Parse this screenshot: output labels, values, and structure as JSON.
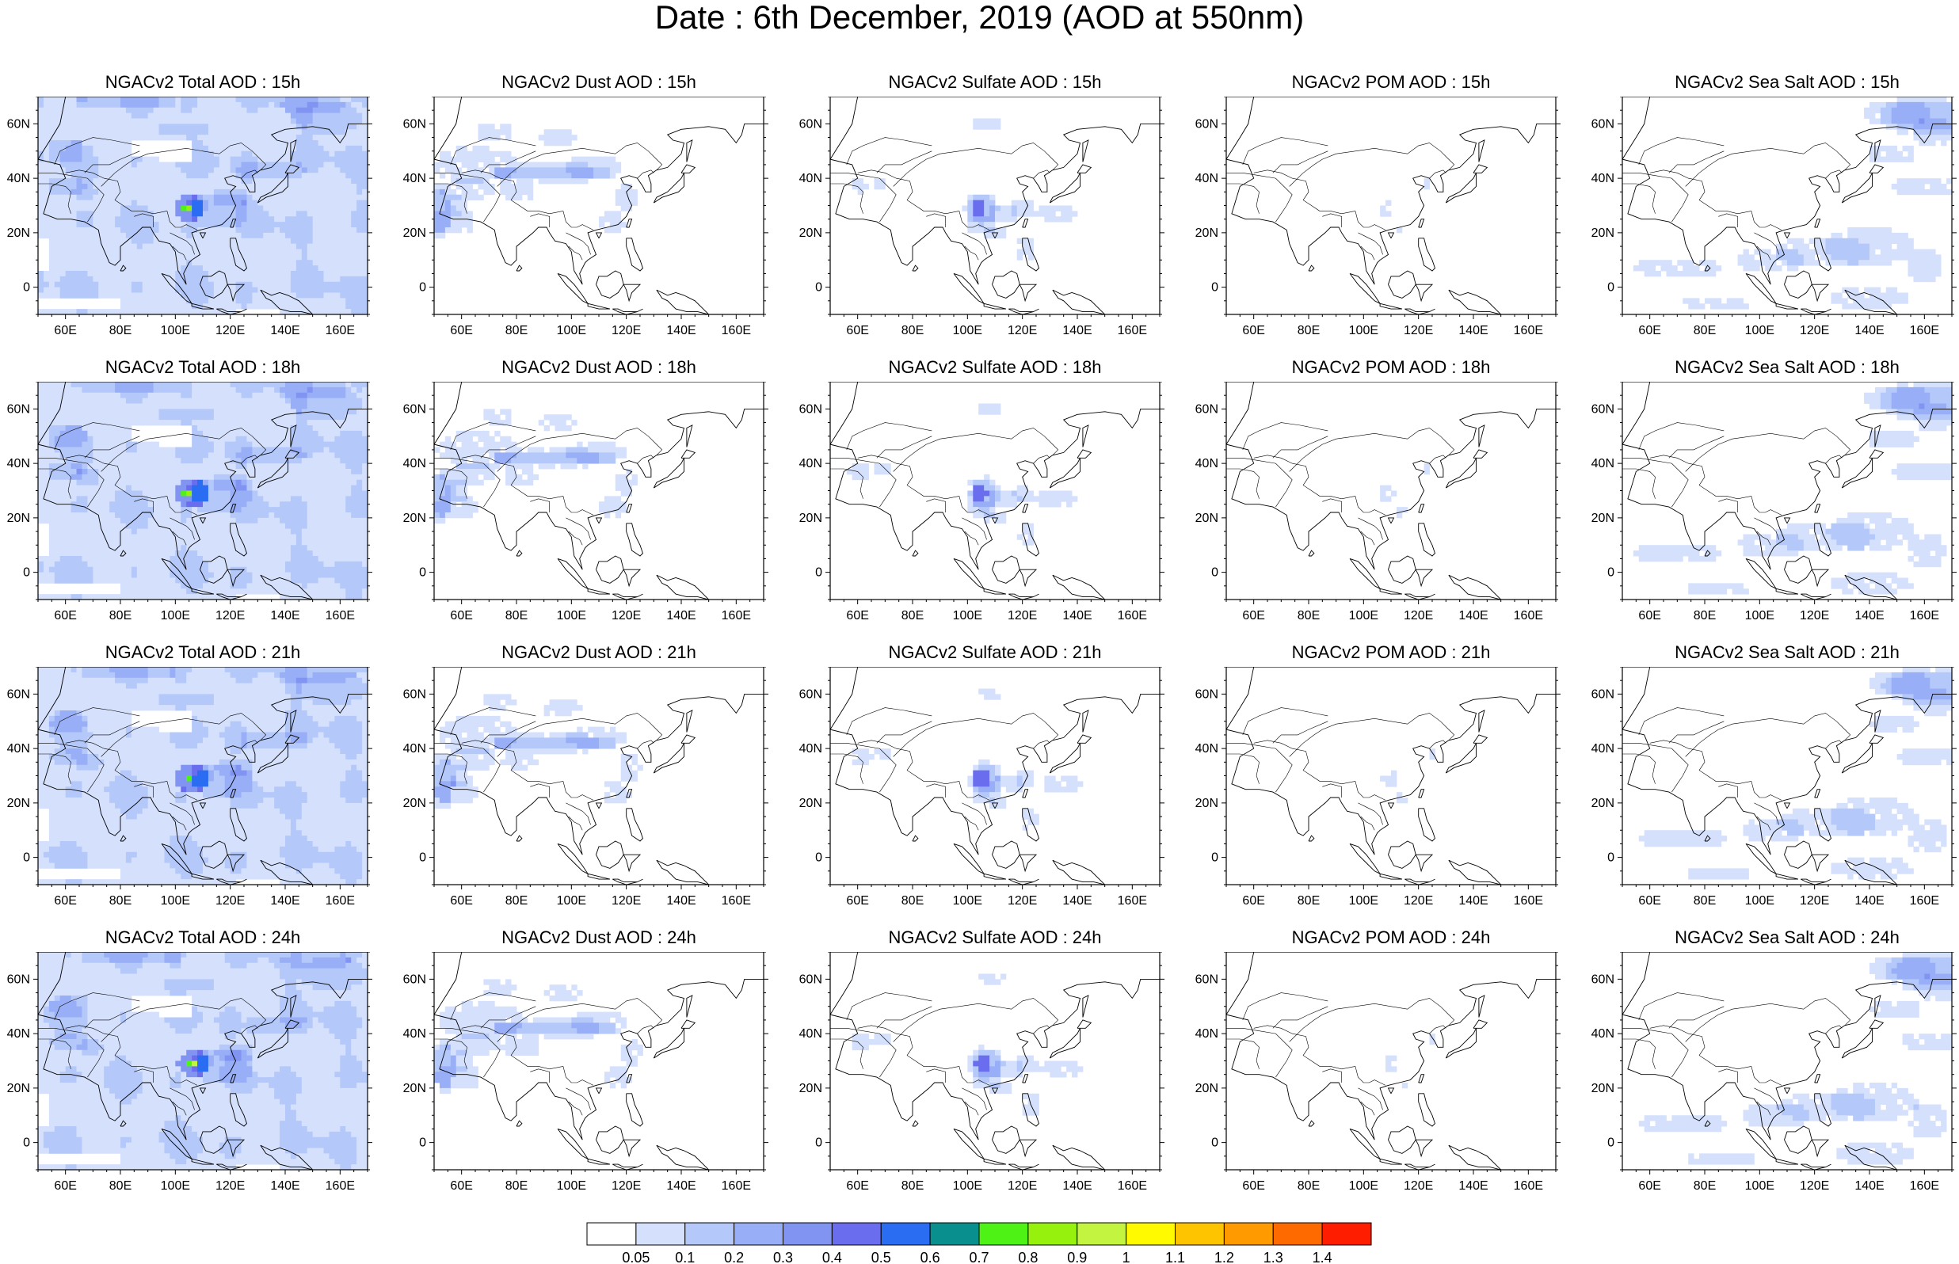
{
  "title": "Date : 6th December, 2019 (AOD at 550nm)",
  "axes": {
    "lon_ticks": [
      "60E",
      "80E",
      "100E",
      "120E",
      "140E",
      "160E"
    ],
    "lon_values": [
      60,
      80,
      100,
      120,
      140,
      160
    ],
    "lat_ticks": [
      "60N",
      "40N",
      "20N",
      "0"
    ],
    "lat_values": [
      60,
      40,
      20,
      0
    ],
    "lon_range": [
      50,
      170
    ],
    "lat_range": [
      -10,
      70
    ]
  },
  "colorbar": {
    "labels": [
      "0.05",
      "0.1",
      "0.2",
      "0.3",
      "0.4",
      "0.5",
      "0.6",
      "0.7",
      "0.8",
      "0.9",
      "1",
      "1.1",
      "1.2",
      "1.3",
      "1.4"
    ],
    "colors": [
      "#ffffff",
      "#d4e0fc",
      "#b4c8fa",
      "#98aef7",
      "#8294f2",
      "#6a6eee",
      "#2a6cf2",
      "#0a8f8f",
      "#4ef214",
      "#96f10c",
      "#c3f540",
      "#fffa00",
      "#ffc400",
      "#ff9b00",
      "#ff6a00",
      "#ff1d00"
    ]
  },
  "variables": [
    {
      "key": "total",
      "name": "Total AOD"
    },
    {
      "key": "dust",
      "name": "Dust AOD"
    },
    {
      "key": "sulfate",
      "name": "Sulfate AOD"
    },
    {
      "key": "pom",
      "name": "POM AOD"
    },
    {
      "key": "seasalt",
      "name": "Sea Salt AOD"
    }
  ],
  "hours": [
    "15h",
    "18h",
    "21h",
    "24h"
  ],
  "panels": [
    {
      "title": "NGACv2 Total AOD : 15h",
      "variable": "total",
      "hour": "15h"
    },
    {
      "title": "NGACv2 Dust AOD : 15h",
      "variable": "dust",
      "hour": "15h"
    },
    {
      "title": "NGACv2 Sulfate AOD : 15h",
      "variable": "sulfate",
      "hour": "15h"
    },
    {
      "title": "NGACv2 POM AOD : 15h",
      "variable": "pom",
      "hour": "15h"
    },
    {
      "title": "NGACv2 Sea Salt AOD : 15h",
      "variable": "seasalt",
      "hour": "15h"
    },
    {
      "title": "NGACv2 Total AOD : 18h",
      "variable": "total",
      "hour": "18h"
    },
    {
      "title": "NGACv2 Dust AOD : 18h",
      "variable": "dust",
      "hour": "18h"
    },
    {
      "title": "NGACv2 Sulfate AOD : 18h",
      "variable": "sulfate",
      "hour": "18h"
    },
    {
      "title": "NGACv2 POM AOD : 18h",
      "variable": "pom",
      "hour": "18h"
    },
    {
      "title": "NGACv2 Sea Salt AOD : 18h",
      "variable": "seasalt",
      "hour": "18h"
    },
    {
      "title": "NGACv2 Total AOD : 21h",
      "variable": "total",
      "hour": "21h"
    },
    {
      "title": "NGACv2 Dust AOD : 21h",
      "variable": "dust",
      "hour": "21h"
    },
    {
      "title": "NGACv2 Sulfate AOD : 21h",
      "variable": "sulfate",
      "hour": "21h"
    },
    {
      "title": "NGACv2 POM AOD : 21h",
      "variable": "pom",
      "hour": "21h"
    },
    {
      "title": "NGACv2 Sea Salt AOD : 21h",
      "variable": "seasalt",
      "hour": "21h"
    },
    {
      "title": "NGACv2 Total AOD : 24h",
      "variable": "total",
      "hour": "24h"
    },
    {
      "title": "NGACv2 Dust AOD : 24h",
      "variable": "dust",
      "hour": "24h"
    },
    {
      "title": "NGACv2 Sulfate AOD : 24h",
      "variable": "sulfate",
      "hour": "24h"
    },
    {
      "title": "NGACv2 POM AOD : 24h",
      "variable": "pom",
      "hour": "24h"
    },
    {
      "title": "NGACv2 Sea Salt  AOD : 24h",
      "variable": "seasalt",
      "hour": "24h"
    }
  ]
}
